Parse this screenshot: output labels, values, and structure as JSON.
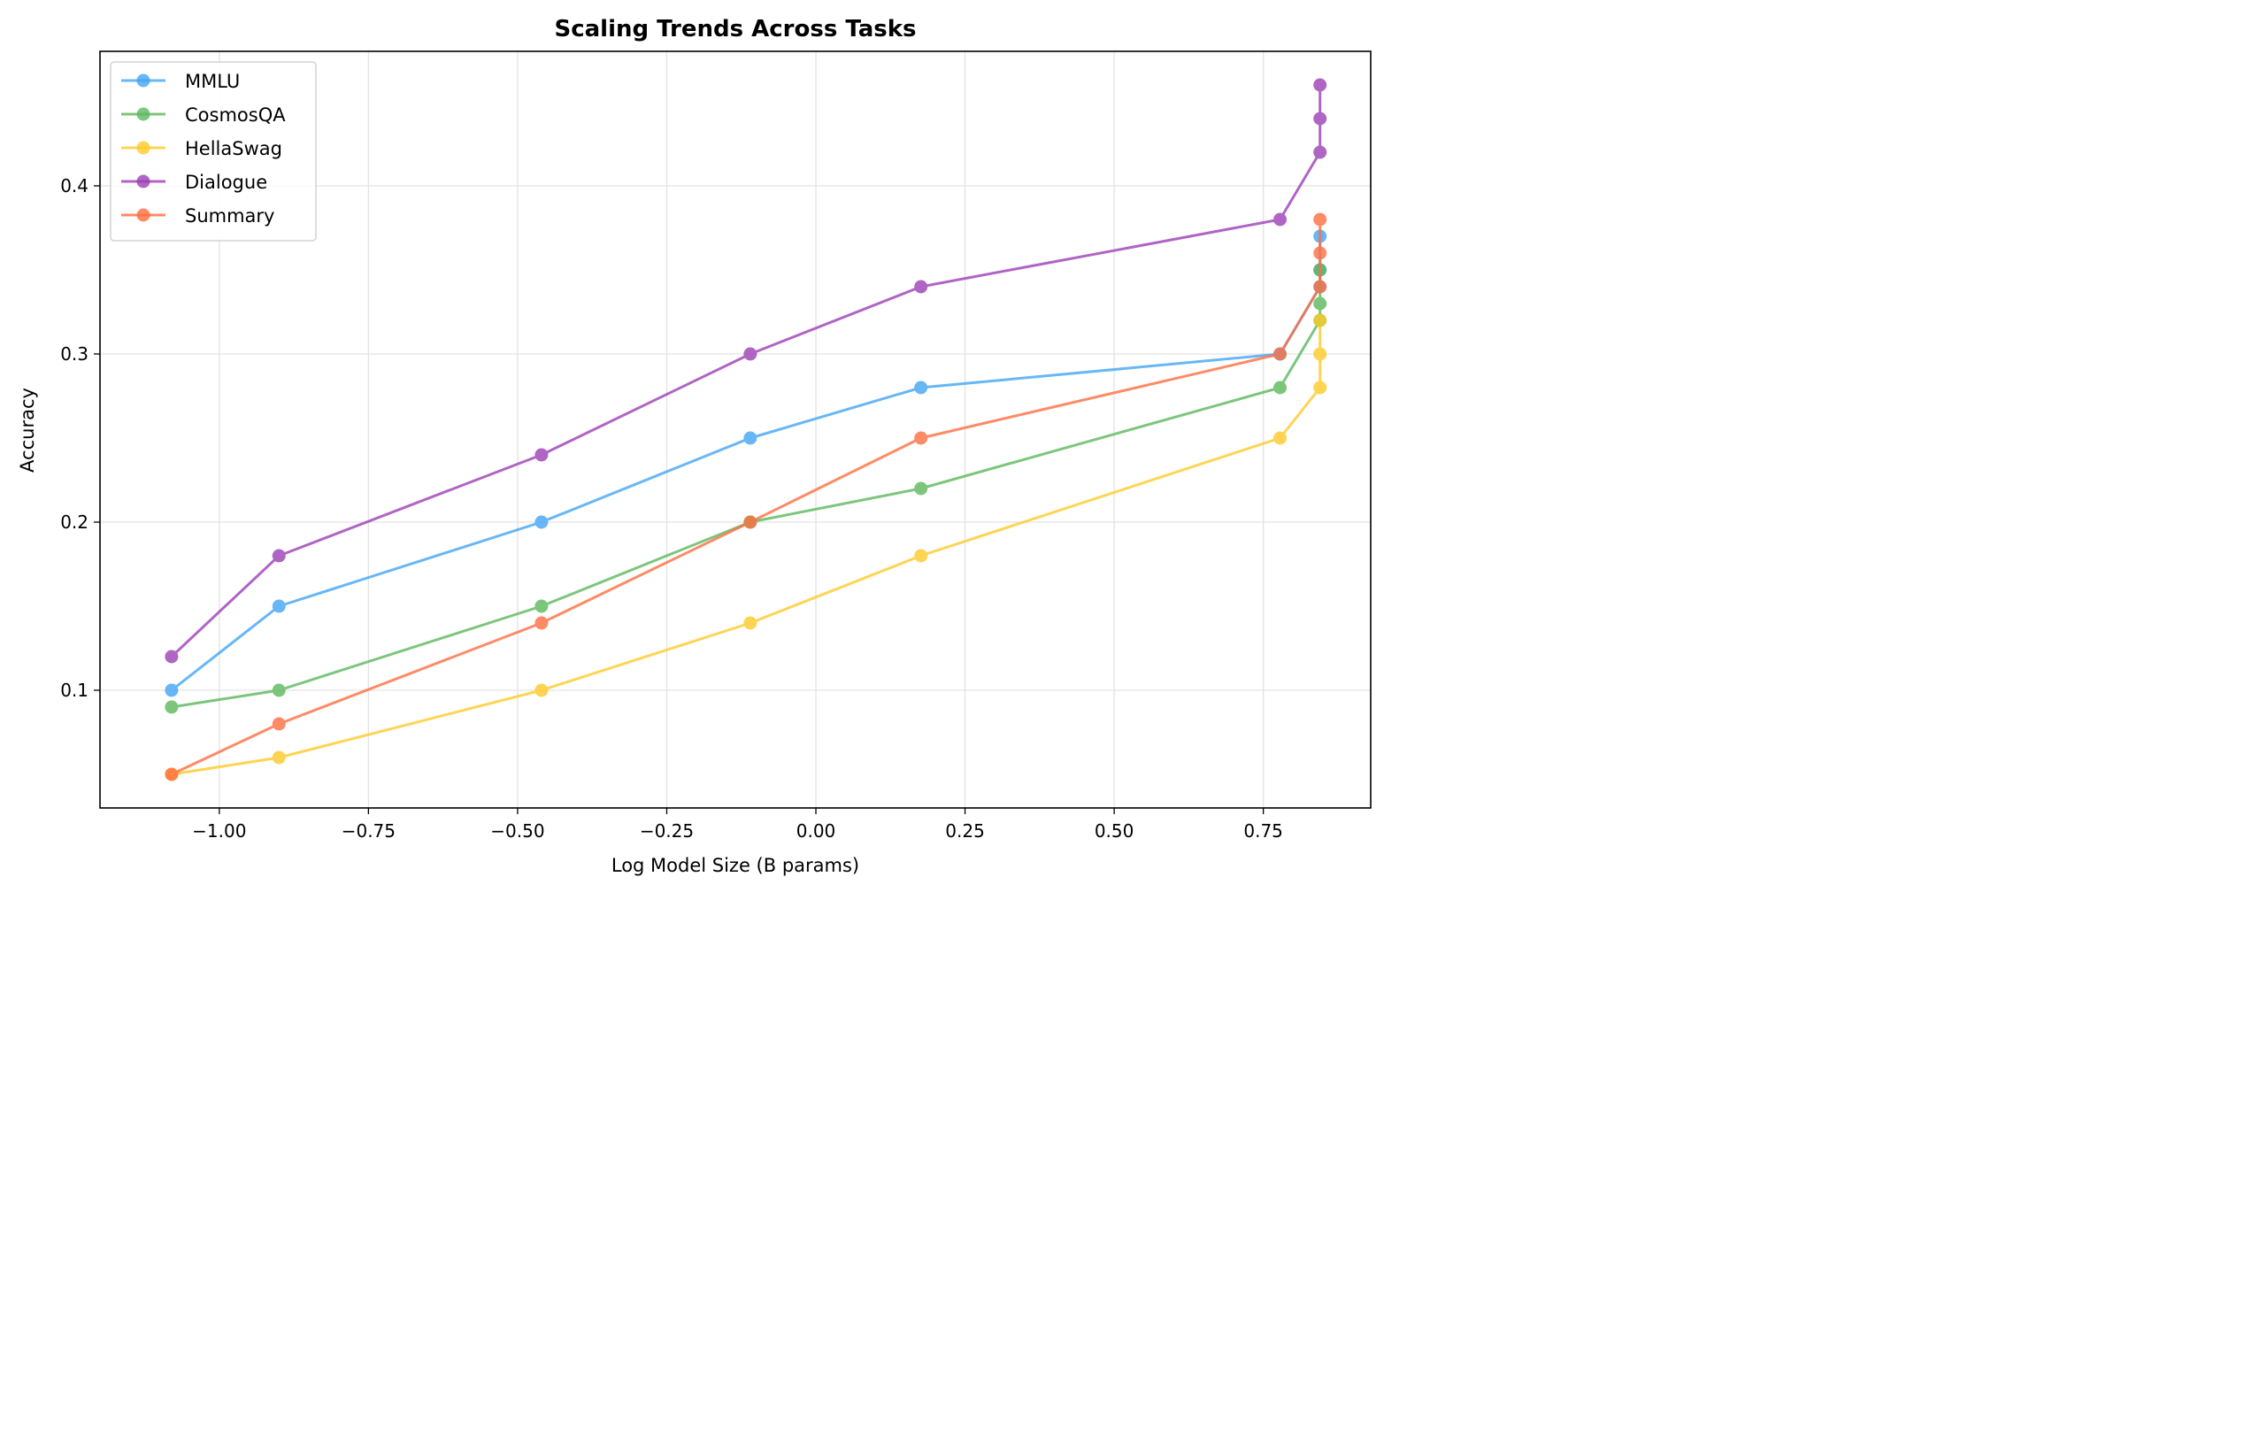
{
  "chart_data": {
    "type": "line",
    "title": "Scaling Trends Across Tasks",
    "xlabel": "Log Model Size (B params)",
    "ylabel": "Accuracy",
    "xlim": [
      -1.2,
      0.93
    ],
    "ylim": [
      0.03,
      0.48
    ],
    "grid": true,
    "legend_position": "top-left",
    "x_ticks": [
      -1.0,
      -0.75,
      -0.5,
      -0.25,
      0.0,
      0.25,
      0.5,
      0.75
    ],
    "x_tick_labels": [
      "−1.00",
      "−0.75",
      "−0.50",
      "−0.25",
      "0.00",
      "0.25",
      "0.50",
      "0.75"
    ],
    "y_ticks": [
      0.1,
      0.2,
      0.3,
      0.4
    ],
    "y_tick_labels": [
      "0.1",
      "0.2",
      "0.3",
      "0.4"
    ],
    "series": [
      {
        "name": "MMLU",
        "color": "#42A5F5",
        "x": [
          -1.08,
          -0.9,
          -0.46,
          -0.11,
          0.176,
          0.778,
          0.845,
          0.845,
          0.845
        ],
        "y": [
          0.1,
          0.15,
          0.2,
          0.25,
          0.28,
          0.3,
          0.34,
          0.35,
          0.37
        ]
      },
      {
        "name": "CosmosQA",
        "color": "#5CB85C",
        "x": [
          -1.08,
          -0.9,
          -0.46,
          -0.11,
          0.176,
          0.778,
          0.845,
          0.845,
          0.845
        ],
        "y": [
          0.09,
          0.1,
          0.15,
          0.2,
          0.22,
          0.28,
          0.32,
          0.33,
          0.35
        ]
      },
      {
        "name": "HellaSwag",
        "color": "#FFCA28",
        "x": [
          -1.08,
          -0.9,
          -0.46,
          -0.11,
          0.176,
          0.778,
          0.845,
          0.845,
          0.845
        ],
        "y": [
          0.05,
          0.06,
          0.1,
          0.14,
          0.18,
          0.25,
          0.28,
          0.3,
          0.32
        ]
      },
      {
        "name": "Dialogue",
        "color": "#9C3FB5",
        "x": [
          -1.08,
          -0.9,
          -0.46,
          -0.11,
          0.176,
          0.778,
          0.845,
          0.845,
          0.845
        ],
        "y": [
          0.12,
          0.18,
          0.24,
          0.3,
          0.34,
          0.38,
          0.42,
          0.44,
          0.46
        ]
      },
      {
        "name": "Summary",
        "color": "#FF6E40",
        "x": [
          -1.08,
          -0.9,
          -0.46,
          -0.11,
          0.176,
          0.778,
          0.845,
          0.845,
          0.845
        ],
        "y": [
          0.05,
          0.08,
          0.14,
          0.2,
          0.25,
          0.3,
          0.34,
          0.36,
          0.38
        ]
      }
    ]
  }
}
